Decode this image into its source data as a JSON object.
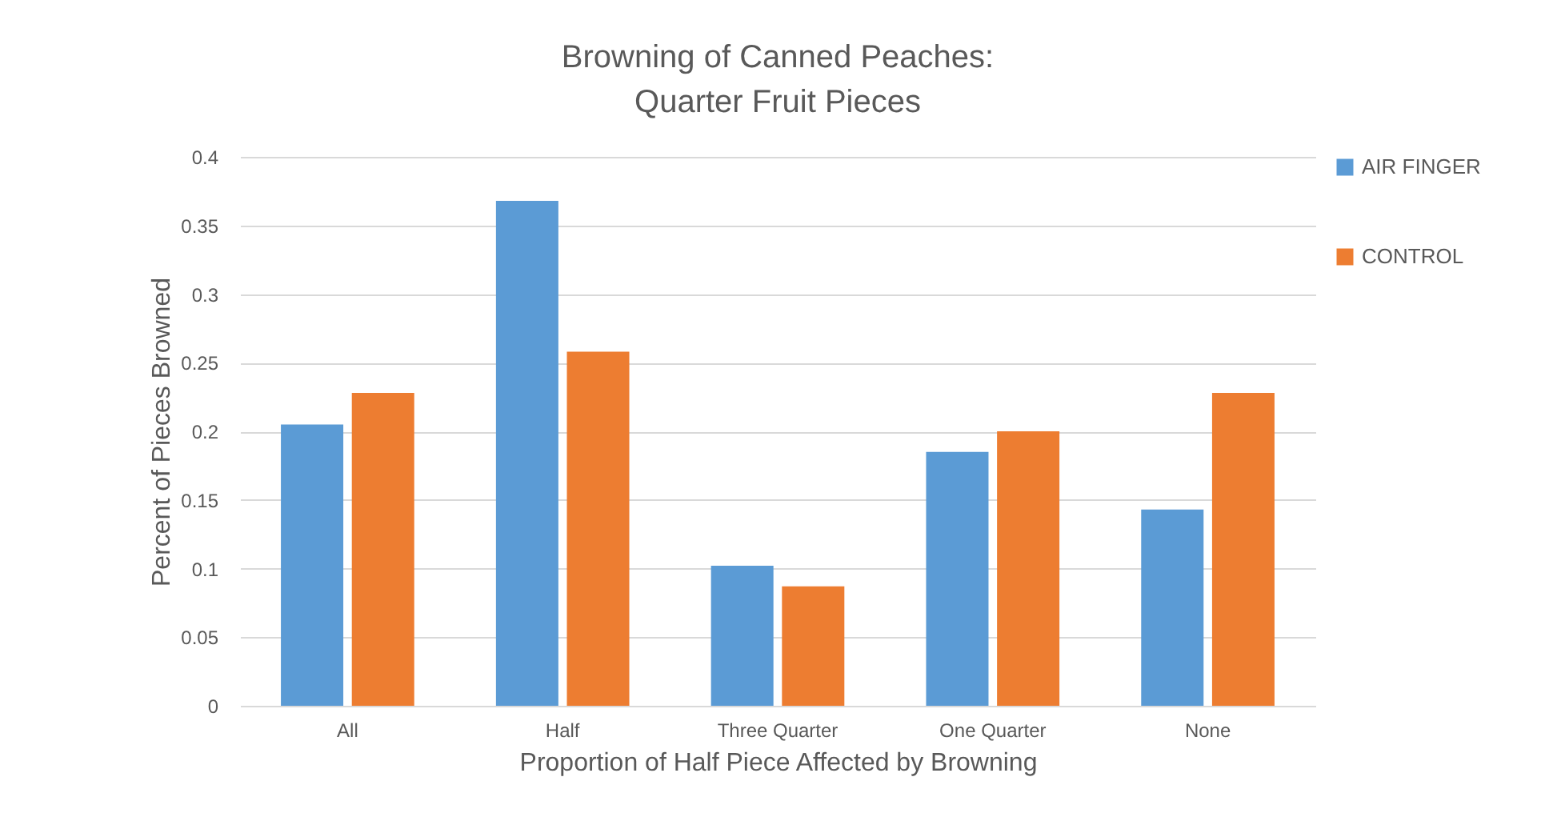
{
  "chart_data": {
    "type": "bar",
    "title": "Browning of Canned Peaches:\nQuarter Fruit Pieces",
    "xlabel": "Proportion of Half Piece Affected by Browning",
    "ylabel": "Percent of Pieces Browned",
    "categories": [
      "All",
      "Half",
      "Three Quarter",
      "One Quarter",
      "None"
    ],
    "series": [
      {
        "name": "AIR FINGER",
        "color": "#5b9bd5",
        "values": [
          0.205,
          0.368,
          0.102,
          0.185,
          0.143
        ]
      },
      {
        "name": "CONTROL",
        "color": "#ed7d31",
        "values": [
          0.228,
          0.258,
          0.087,
          0.2,
          0.228
        ]
      }
    ],
    "ylim": [
      0,
      0.4
    ],
    "yticks": [
      0,
      0.05,
      0.1,
      0.15,
      0.2,
      0.25,
      0.3,
      0.35,
      0.4
    ],
    "grid": "y",
    "legend": "right"
  }
}
